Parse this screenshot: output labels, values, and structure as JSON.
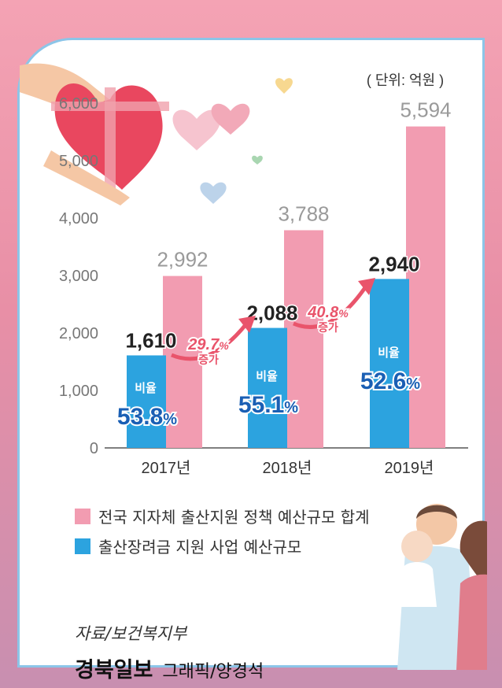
{
  "unit_label": "( 단위: 억원 )",
  "chart_data": {
    "type": "bar",
    "categories": [
      "2017년",
      "2018년",
      "2019년"
    ],
    "series": [
      {
        "name": "전국 지자체 출산지원 정책 예산규모 합계",
        "values": [
          2992,
          3788,
          5594
        ],
        "color": "#f29cb1"
      },
      {
        "name": "출산장려금 지원 사업 예산규모",
        "values": [
          1610,
          2088,
          2940
        ],
        "color": "#2ca3df"
      }
    ],
    "ylim": [
      0,
      6000
    ],
    "yticks": [
      0,
      1000,
      2000,
      3000,
      4000,
      5000,
      6000
    ],
    "ytick_labels": [
      "0",
      "1,000",
      "2,000",
      "3,000",
      "4,000",
      "5,000",
      "6,000"
    ],
    "value_labels": {
      "total": [
        "2,992",
        "3,788",
        "5,594"
      ],
      "bonus": [
        "1,610",
        "2,088",
        "2,940"
      ]
    },
    "ratio_title": "비율",
    "ratios": [
      "53.8",
      "55.1",
      "52.6"
    ],
    "ratio_unit": "%",
    "increases": [
      {
        "value": "29.7",
        "unit": "%",
        "label": "증가"
      },
      {
        "value": "40.8",
        "unit": "%",
        "label": "증가"
      }
    ]
  },
  "legend": [
    {
      "label": "전국 지자체 출산지원 정책 예산규모 합계",
      "color": "#f29cb1"
    },
    {
      "label": "출산장려금 지원 사업 예산규모",
      "color": "#2ca3df"
    }
  ],
  "source": "자료/보건복지부",
  "credit": {
    "brand": "경북일보",
    "rest": "그래픽/양경석"
  }
}
